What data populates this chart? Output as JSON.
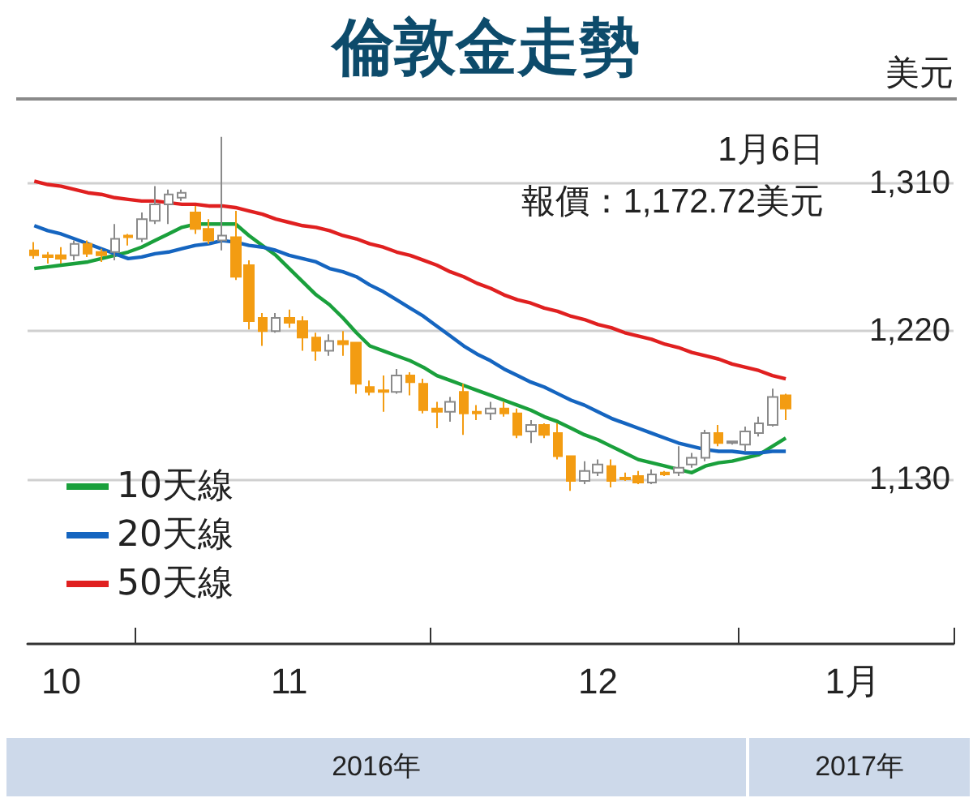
{
  "chart_data": {
    "type": "candlestick",
    "title": "倫敦金走勢",
    "ylabel": "美元",
    "annotations": [
      "1月6日",
      "報價：1,172.72美元",
      "2016年",
      "2017年"
    ],
    "categories": [
      null,
      null,
      "10",
      null,
      null,
      null,
      null,
      null,
      null,
      null,
      null,
      null,
      null,
      null,
      null,
      null,
      null,
      null,
      null,
      "11",
      null,
      null,
      null,
      null,
      null,
      null,
      null,
      null,
      null,
      null,
      null,
      null,
      null,
      null,
      null,
      null,
      null,
      null,
      null,
      null,
      null,
      null,
      "12",
      null,
      null,
      null,
      null,
      null,
      null,
      null,
      null,
      null,
      null,
      null,
      null,
      null,
      null,
      null,
      null,
      null,
      null,
      "1月",
      null,
      null,
      null,
      null,
      null,
      null,
      null
    ],
    "colors": [
      "#f39c12",
      "#f39c12",
      "#f39c12",
      "#ffffff",
      "#f39c12",
      "#f39c12",
      "#ffffff",
      "#f39c12",
      "#ffffff",
      "#ffffff",
      "#ffffff",
      "#ffffff",
      "#f39c12",
      "#f39c12",
      "#ffffff",
      "#f39c12",
      "#f39c12",
      "#f39c12",
      "#ffffff",
      "#f39c12",
      "#f39c12",
      "#f39c12",
      "#ffffff",
      "#f39c12",
      "#f39c12",
      "#f39c12",
      "#f39c12",
      "#ffffff",
      "#f39c12",
      "#f39c12",
      "#f39c12",
      "#ffffff",
      "#f39c12",
      "#f39c12",
      "#ffffff",
      "#f39c12",
      "#f39c12",
      "#ffffff",
      "#f39c12",
      "#f39c12",
      "#f39c12",
      "#ffffff",
      "#ffffff",
      "#f39c12",
      "#f39c12",
      "#f39c12",
      "#ffffff",
      "#f39c12",
      "#ffffff",
      "#ffffff",
      "#ffffff",
      "#f39c12",
      "#ffffff",
      "#ffffff",
      "#ffffff",
      "#ffffff",
      "#f39c12",
      null,
      null,
      null,
      null,
      null,
      null,
      null,
      null,
      null,
      null,
      null,
      null
    ],
    "ohlc": [
      [
        1269,
        1274,
        1264,
        1266
      ],
      [
        1266,
        1268,
        1261,
        1265
      ],
      [
        1266,
        1271,
        1261,
        1264
      ],
      [
        1266,
        1275,
        1263,
        1273
      ],
      [
        1273,
        1275,
        1265,
        1267
      ],
      [
        1268,
        1270,
        1262,
        1266
      ],
      [
        1268,
        1285,
        1263,
        1276
      ],
      [
        1278,
        1279,
        1272,
        1277
      ],
      [
        1276,
        1292,
        1274,
        1288
      ],
      [
        1287,
        1308,
        1285,
        1297
      ],
      [
        1297,
        1306,
        1285,
        1303
      ],
      [
        1301,
        1306,
        1299,
        1304
      ],
      [
        1292,
        1296,
        1279,
        1282
      ],
      [
        1282,
        1288,
        1273,
        1275
      ],
      [
        1275,
        1338,
        1269,
        1278
      ],
      [
        1277,
        1293,
        1251,
        1253
      ],
      [
        1260,
        1263,
        1221,
        1226
      ],
      [
        1228,
        1231,
        1211,
        1220
      ],
      [
        1220,
        1231,
        1219,
        1228
      ],
      [
        1228,
        1233,
        1222,
        1225
      ],
      [
        1226,
        1229,
        1208,
        1216
      ],
      [
        1216,
        1219,
        1202,
        1208
      ],
      [
        1208,
        1218,
        1205,
        1214
      ],
      [
        1214,
        1220,
        1205,
        1212
      ],
      [
        1213,
        1213,
        1182,
        1188
      ],
      [
        1186,
        1190,
        1181,
        1183
      ],
      [
        1184,
        1193,
        1171,
        1183
      ],
      [
        1183,
        1197,
        1182,
        1193
      ],
      [
        1193,
        1195,
        1181,
        1189
      ],
      [
        1188,
        1191,
        1170,
        1172
      ],
      [
        1173,
        1177,
        1161,
        1171
      ],
      [
        1171,
        1180,
        1165,
        1177
      ],
      [
        1183,
        1188,
        1157,
        1170
      ],
      [
        1171,
        1175,
        1166,
        1170
      ],
      [
        1170,
        1177,
        1166,
        1173
      ],
      [
        1173,
        1177,
        1168,
        1170
      ],
      [
        1170,
        1173,
        1155,
        1157
      ],
      [
        1159,
        1166,
        1152,
        1163
      ],
      [
        1163,
        1164,
        1155,
        1157
      ],
      [
        1158,
        1164,
        1142,
        1144
      ],
      [
        1144,
        1144,
        1123,
        1129
      ],
      [
        1129,
        1141,
        1127,
        1135
      ],
      [
        1134,
        1142,
        1132,
        1139
      ],
      [
        1138,
        1142,
        1125,
        1129
      ],
      [
        1131,
        1134,
        1129,
        1130
      ],
      [
        1132,
        1135,
        1127,
        1128
      ],
      [
        1128,
        1136,
        1127,
        1133
      ],
      [
        1134,
        1135,
        1132,
        1133
      ],
      [
        1134,
        1150,
        1132,
        1137
      ],
      [
        1139,
        1146,
        1137,
        1143
      ],
      [
        1143,
        1160,
        1141,
        1158
      ],
      [
        1158,
        1163,
        1150,
        1152
      ],
      [
        1152,
        1153,
        1151,
        1153
      ],
      [
        1151,
        1162,
        1147,
        1159
      ],
      [
        1158,
        1168,
        1156,
        1164
      ],
      [
        1163,
        1185,
        1162,
        1180
      ],
      [
        1181,
        1182,
        1166,
        1173
      ],
      null,
      null,
      null,
      null,
      null,
      null,
      null,
      null,
      null,
      null,
      null,
      null
    ],
    "series": [
      {
        "name": "10天線",
        "type": "line",
        "color": "#1aa03c",
        "values": [
          1258,
          1259,
          1260,
          1261,
          1262,
          1264,
          1266,
          1268,
          1271,
          1275,
          1279,
          1283,
          1285,
          1285,
          1285,
          1285,
          1278,
          1272,
          1266,
          1258,
          1250,
          1242,
          1236,
          1228,
          1219,
          1211,
          1208,
          1205,
          1202,
          1198,
          1193,
          1190,
          1187,
          1184,
          1181,
          1178,
          1175,
          1172,
          1168,
          1165,
          1161,
          1157,
          1154,
          1150,
          1146,
          1142,
          1140,
          1138,
          1136,
          1134,
          1138,
          1140,
          1141,
          1143,
          1145,
          1150,
          1155,
          null,
          null,
          null,
          null,
          null,
          null,
          null,
          null,
          null,
          null,
          null,
          null
        ]
      },
      {
        "name": "20天線",
        "type": "line",
        "color": "#1565c0",
        "values": [
          1284,
          1281,
          1279,
          1276,
          1273,
          1270,
          1267,
          1264,
          1265,
          1267,
          1268,
          1270,
          1272,
          1273,
          1275,
          1274,
          1272,
          1271,
          1269,
          1266,
          1264,
          1262,
          1258,
          1256,
          1253,
          1248,
          1244,
          1239,
          1234,
          1229,
          1223,
          1217,
          1211,
          1206,
          1202,
          1197,
          1193,
          1189,
          1186,
          1182,
          1178,
          1175,
          1171,
          1167,
          1164,
          1161,
          1158,
          1155,
          1152,
          1150,
          1148,
          1147,
          1147,
          1146,
          1146,
          1147,
          1147,
          null,
          null,
          null,
          null,
          null,
          null,
          null,
          null,
          null,
          null,
          null,
          null
        ]
      },
      {
        "name": "50天線",
        "type": "line",
        "color": "#e02020",
        "values": [
          1311,
          1309,
          1308,
          1306,
          1304,
          1303,
          1301,
          1300,
          1299,
          1299,
          1298,
          1297,
          1297,
          1296,
          1296,
          1295,
          1293,
          1291,
          1288,
          1286,
          1284,
          1283,
          1281,
          1278,
          1276,
          1273,
          1271,
          1268,
          1266,
          1263,
          1260,
          1256,
          1253,
          1249,
          1246,
          1242,
          1239,
          1237,
          1234,
          1232,
          1229,
          1227,
          1224,
          1222,
          1219,
          1217,
          1215,
          1212,
          1210,
          1207,
          1205,
          1203,
          1200,
          1198,
          1196,
          1193,
          1191,
          null,
          null,
          null,
          null,
          null,
          null,
          null,
          null,
          null,
          null,
          null,
          null
        ]
      }
    ],
    "ylim": [
      1030,
      1360
    ],
    "yticks": [
      {
        "value": 1130,
        "label": "1,130"
      },
      {
        "value": 1220,
        "label": "1,220"
      },
      {
        "value": 1310,
        "label": "1,310"
      }
    ],
    "grid": "y",
    "legend": "bottom left",
    "marker": "none"
  }
}
